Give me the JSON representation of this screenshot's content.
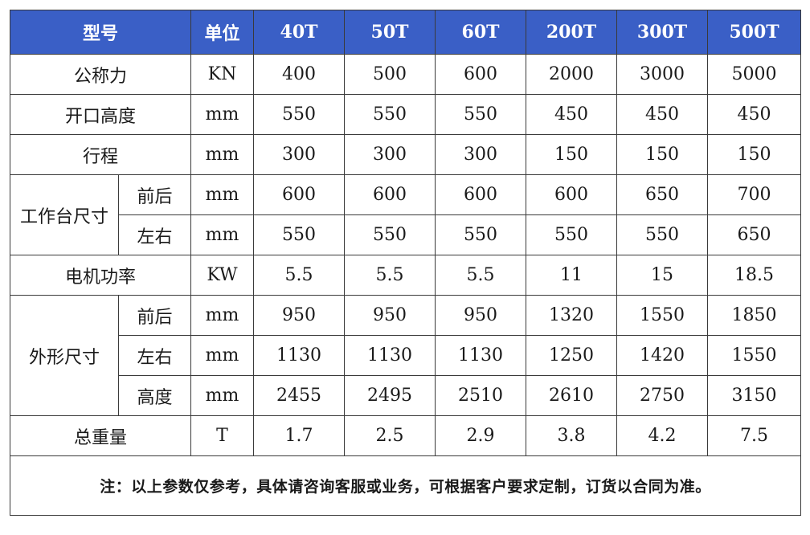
{
  "header": {
    "model": "型号",
    "unit": "单位",
    "models": [
      "40T",
      "50T",
      "60T",
      "200T",
      "300T",
      "500T"
    ]
  },
  "rows": {
    "nominal_force": {
      "label": "公称力",
      "unit": "KN",
      "values": [
        "400",
        "500",
        "600",
        "2000",
        "3000",
        "5000"
      ]
    },
    "opening_height": {
      "label": "开口高度",
      "unit": "mm",
      "values": [
        "550",
        "550",
        "550",
        "450",
        "450",
        "450"
      ]
    },
    "stroke": {
      "label": "行程",
      "unit": "mm",
      "values": [
        "300",
        "300",
        "300",
        "150",
        "150",
        "150"
      ]
    },
    "table_size": {
      "label": "工作台尺寸",
      "front_back": {
        "label": "前后",
        "unit": "mm",
        "values": [
          "600",
          "600",
          "600",
          "600",
          "650",
          "700"
        ]
      },
      "left_right": {
        "label": "左右",
        "unit": "mm",
        "values": [
          "550",
          "550",
          "550",
          "550",
          "550",
          "650"
        ]
      }
    },
    "motor_power": {
      "label": "电机功率",
      "unit": "KW",
      "values": [
        "5.5",
        "5.5",
        "5.5",
        "11",
        "15",
        "18.5"
      ]
    },
    "overall_dimensions": {
      "label": "外形尺寸",
      "front_back": {
        "label": "前后",
        "unit": "mm",
        "values": [
          "950",
          "950",
          "950",
          "1320",
          "1550",
          "1850"
        ]
      },
      "left_right": {
        "label": "左右",
        "unit": "mm",
        "values": [
          "1130",
          "1130",
          "1130",
          "1250",
          "1420",
          "1550"
        ]
      },
      "height": {
        "label": "高度",
        "unit": "mm",
        "values": [
          "2455",
          "2495",
          "2510",
          "2610",
          "2750",
          "3150"
        ]
      }
    },
    "total_weight": {
      "label": "总重量",
      "unit": "T",
      "values": [
        "1.7",
        "2.5",
        "2.9",
        "3.8",
        "4.2",
        "7.5"
      ]
    }
  },
  "note": "注：以上参数仅参考，具体请咨询客服或业务，可根据客户要求定制，订货以合同为准。",
  "colors": {
    "header_bg": "#3a5fc6",
    "header_text": "#ffffff",
    "border": "#3a3a3a"
  }
}
